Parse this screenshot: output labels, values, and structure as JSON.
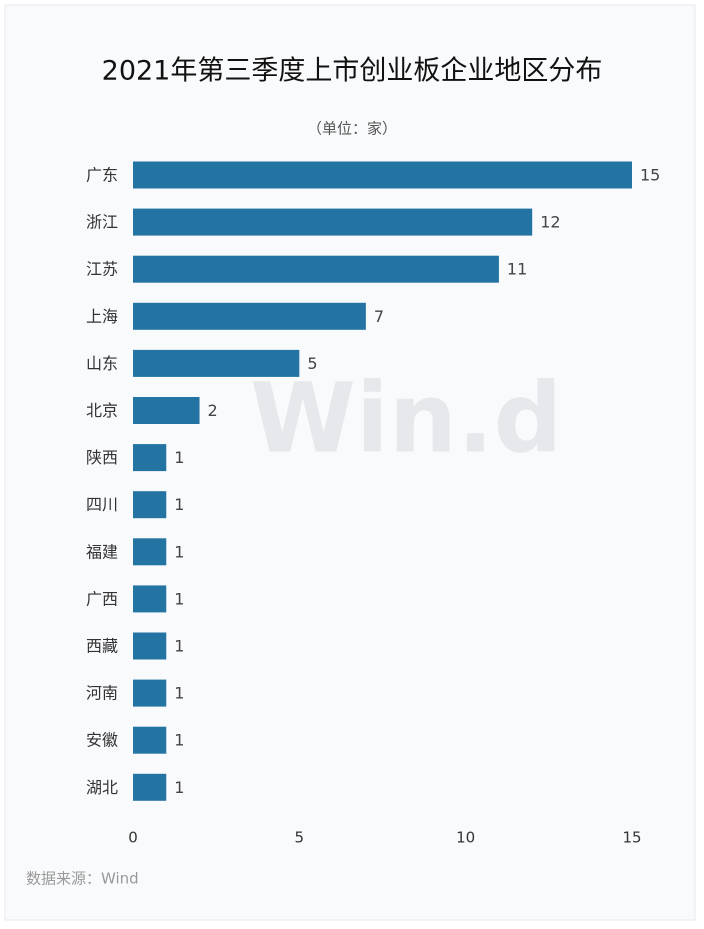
{
  "chart_data": {
    "type": "barh",
    "title": "2021年第三季度上市创业板企业地区分布",
    "subtitle": "（单位：家）",
    "source": "数据来源：Wind",
    "watermark": "Win.d",
    "categories": [
      "广东",
      "浙江",
      "江苏",
      "上海",
      "山东",
      "北京",
      "陕西",
      "四川",
      "福建",
      "广西",
      "西藏",
      "河南",
      "安徽",
      "湖北"
    ],
    "values": [
      15,
      12,
      11,
      7,
      5,
      2,
      1,
      1,
      1,
      1,
      1,
      1,
      1,
      1
    ],
    "color": "#2474a3",
    "xlim": [
      0,
      15
    ],
    "xticks": [
      0,
      5,
      10,
      15
    ],
    "grid": false
  }
}
